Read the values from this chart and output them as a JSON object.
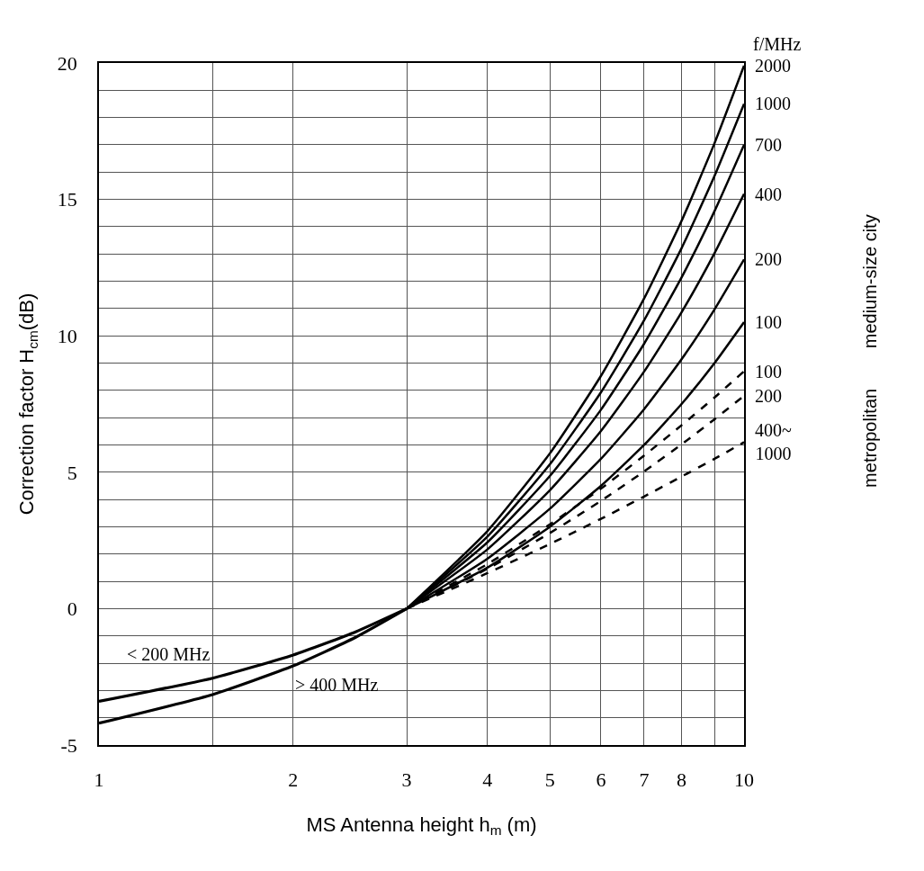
{
  "chart_data": {
    "type": "line",
    "xlabel": "MS Antenna height h$_{m}$ (m)",
    "ylabel": "Correction factor H$_{cm}$(dB)",
    "legend_title": "f/MHz",
    "annotations": [
      "medium-size city",
      "metropolitan"
    ],
    "log": "x",
    "grid": true,
    "legend": false,
    "marker": "none",
    "xlim": [
      1,
      10
    ],
    "xticks": [
      1,
      {
        "value": 1.5,
        "label": null
      },
      2,
      3,
      4,
      5,
      6,
      7,
      8,
      {
        "value": 9,
        "label": null
      },
      10
    ],
    "ylim": [
      -5,
      20
    ],
    "yticks": [
      -5,
      {
        "value": -4,
        "label": null
      },
      {
        "value": -3,
        "label": null
      },
      {
        "value": -2,
        "label": null
      },
      {
        "value": -1,
        "label": null
      },
      0,
      {
        "value": 1,
        "label": null
      },
      {
        "value": 2,
        "label": null
      },
      {
        "value": 3,
        "label": null
      },
      {
        "value": 4,
        "label": null
      },
      5,
      {
        "value": 6,
        "label": null
      },
      {
        "value": 7,
        "label": null
      },
      {
        "value": 8,
        "label": null
      },
      {
        "value": 9,
        "label": null
      },
      10,
      {
        "value": 11,
        "label": null
      },
      {
        "value": 12,
        "label": null
      },
      {
        "value": 13,
        "label": null
      },
      {
        "value": 14,
        "label": null
      },
      15,
      {
        "value": 16,
        "label": null
      },
      {
        "value": 17,
        "label": null
      },
      {
        "value": 18,
        "label": null
      },
      {
        "value": 19,
        "label": null
      },
      20
    ],
    "series": [
      {
        "name": "2000",
        "color": "#000000",
        "line_style": "solid",
        "x": [
          3,
          4,
          5,
          6,
          7,
          8,
          9,
          10
        ],
        "values": [
          0,
          2.84,
          5.69,
          8.53,
          11.37,
          14.21,
          17.06,
          19.9
        ]
      },
      {
        "name": "1000",
        "color": "#000000",
        "line_style": "solid",
        "x": [
          3,
          4,
          5,
          6,
          7,
          8,
          9,
          10
        ],
        "values": [
          0,
          2.64,
          5.29,
          7.93,
          10.57,
          13.21,
          15.86,
          18.5
        ]
      },
      {
        "name": "700",
        "color": "#000000",
        "line_style": "solid",
        "x": [
          3,
          4,
          5,
          6,
          7,
          8,
          9,
          10
        ],
        "values": [
          0,
          2.43,
          4.86,
          7.29,
          9.71,
          12.14,
          14.57,
          17.0
        ]
      },
      {
        "name": "400",
        "color": "#000000",
        "line_style": "solid",
        "x": [
          3,
          4,
          5,
          6,
          7,
          8,
          9,
          10
        ],
        "values": [
          0,
          2.17,
          4.34,
          6.51,
          8.69,
          10.86,
          13.03,
          15.2
        ]
      },
      {
        "name": "200",
        "color": "#000000",
        "line_style": "solid",
        "x": [
          3,
          4,
          5,
          6,
          7,
          8,
          9,
          10
        ],
        "values": [
          0,
          1.83,
          3.66,
          5.49,
          7.31,
          9.14,
          10.97,
          12.8
        ]
      },
      {
        "name": "100",
        "color": "#000000",
        "line_style": "solid",
        "x": [
          3,
          4,
          5,
          6,
          7,
          8,
          9,
          10
        ],
        "values": [
          0,
          1.5,
          3.0,
          4.5,
          6.0,
          7.5,
          9.0,
          10.5
        ]
      },
      {
        "name": "100",
        "color": "#000000",
        "line_style": "dashed",
        "x": [
          3,
          4,
          5,
          6,
          7,
          8,
          9,
          10
        ],
        "values": [
          0,
          1.63,
          3.09,
          4.4,
          5.61,
          6.72,
          7.74,
          8.7
        ]
      },
      {
        "name": "200",
        "color": "#000000",
        "line_style": "dashed",
        "x": [
          3,
          4,
          5,
          6,
          7,
          8,
          9,
          10
        ],
        "values": [
          0,
          1.46,
          2.77,
          3.95,
          5.03,
          6.02,
          6.94,
          7.8
        ]
      },
      {
        "name": "400~\n1000",
        "color": "#000000",
        "line_style": "dashed",
        "x": [
          3,
          4,
          5,
          6,
          7,
          8,
          9,
          10
        ],
        "values": [
          0,
          1.3,
          2.37,
          3.29,
          4.11,
          4.84,
          5.49,
          6.1
        ]
      },
      {
        "name": "< 200 MHz",
        "color": "#000000",
        "line_style": "solid",
        "x": [
          1,
          1.5,
          2,
          2.5,
          3
        ],
        "values": [
          -3.4,
          -2.55,
          -1.7,
          -0.85,
          0
        ]
      },
      {
        "name": "> 400 MHz",
        "color": "#000000",
        "line_style": "solid",
        "x": [
          1,
          1.5,
          2,
          2.5,
          3
        ],
        "values": [
          -4.2,
          -3.15,
          -2.1,
          -1.05,
          0
        ]
      }
    ]
  }
}
